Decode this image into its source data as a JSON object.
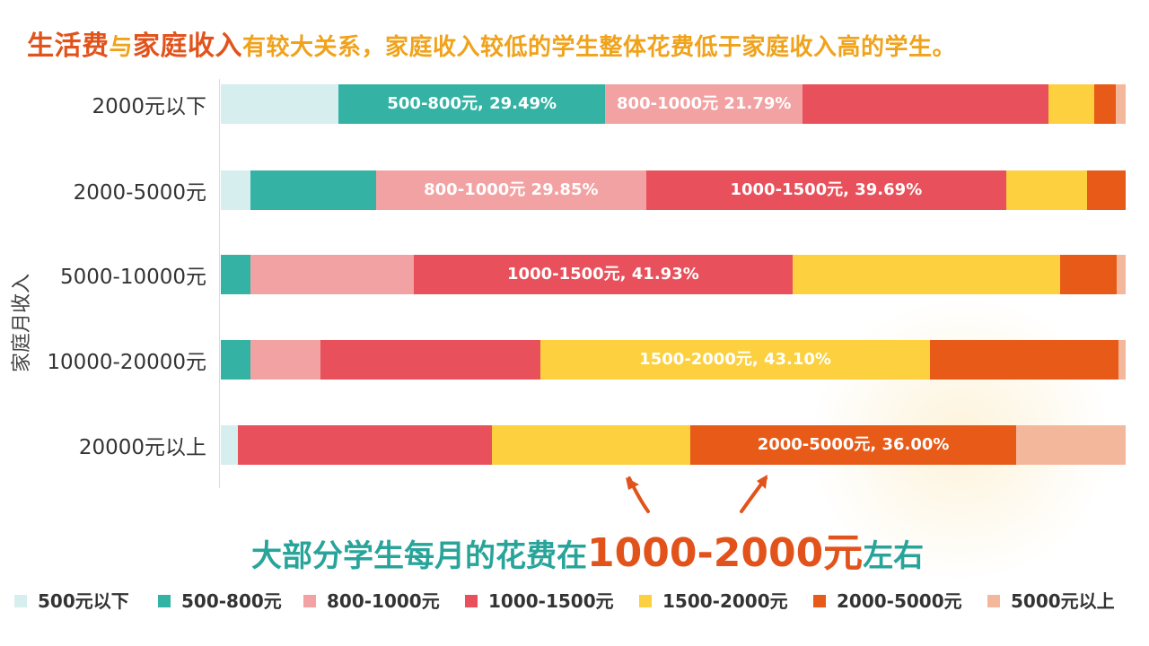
{
  "headline": {
    "part1": "生活费",
    "part2": "与",
    "part3": "家庭收入",
    "part4": "有较大关系，家庭收入较低的学生整体花费低于家庭收入高的学生。"
  },
  "subtitle": {
    "part1": "大部分学生每月的花费在",
    "part2": "1000-2000元",
    "part3": "左右"
  },
  "chart_data": {
    "type": "bar",
    "stacked": true,
    "orientation": "horizontal",
    "unit": "percent",
    "ylabel": "家庭月收入",
    "categories": [
      "2000元以下",
      "2000-5000元",
      "5000-10000元",
      "10000-20000元",
      "20000元以上"
    ],
    "series": [
      {
        "name": "500元以下",
        "color": "#d6eeee",
        "values": [
          13.0,
          3.3,
          0.0,
          0.0,
          1.9
        ]
      },
      {
        "name": "500-800元",
        "color": "#34b3a4",
        "values": [
          29.49,
          13.8,
          3.3,
          3.3,
          0.0
        ]
      },
      {
        "name": "800-1000元",
        "color": "#f2a2a2",
        "values": [
          21.79,
          29.85,
          18.0,
          7.7,
          0.0
        ]
      },
      {
        "name": "1000-1500元",
        "color": "#e8505b",
        "values": [
          27.2,
          39.69,
          41.93,
          24.3,
          28.1
        ]
      },
      {
        "name": "1500-2000元",
        "color": "#fcd03f",
        "values": [
          5.0,
          8.9,
          29.6,
          43.1,
          21.9
        ]
      },
      {
        "name": "2000-5000元",
        "color": "#e75a17",
        "values": [
          2.4,
          4.3,
          6.2,
          20.8,
          36.0
        ]
      },
      {
        "name": "5000元以上",
        "color": "#f3b89b",
        "values": [
          1.1,
          0.0,
          1.0,
          0.8,
          12.1
        ]
      }
    ],
    "data_labels": [
      {
        "row": 0,
        "series": 1,
        "text": "500-800元, 29.49%"
      },
      {
        "row": 0,
        "series": 2,
        "text": "800-1000元 21.79%"
      },
      {
        "row": 1,
        "series": 2,
        "text": "800-1000元 29.85%"
      },
      {
        "row": 1,
        "series": 3,
        "text": "1000-1500元, 39.69%"
      },
      {
        "row": 2,
        "series": 3,
        "text": "1000-1500元, 41.93%"
      },
      {
        "row": 3,
        "series": 4,
        "text": "1500-2000元, 43.10%"
      },
      {
        "row": 4,
        "series": 5,
        "text": "2000-5000元, 36.00%"
      }
    ],
    "legend_position": "bottom"
  }
}
